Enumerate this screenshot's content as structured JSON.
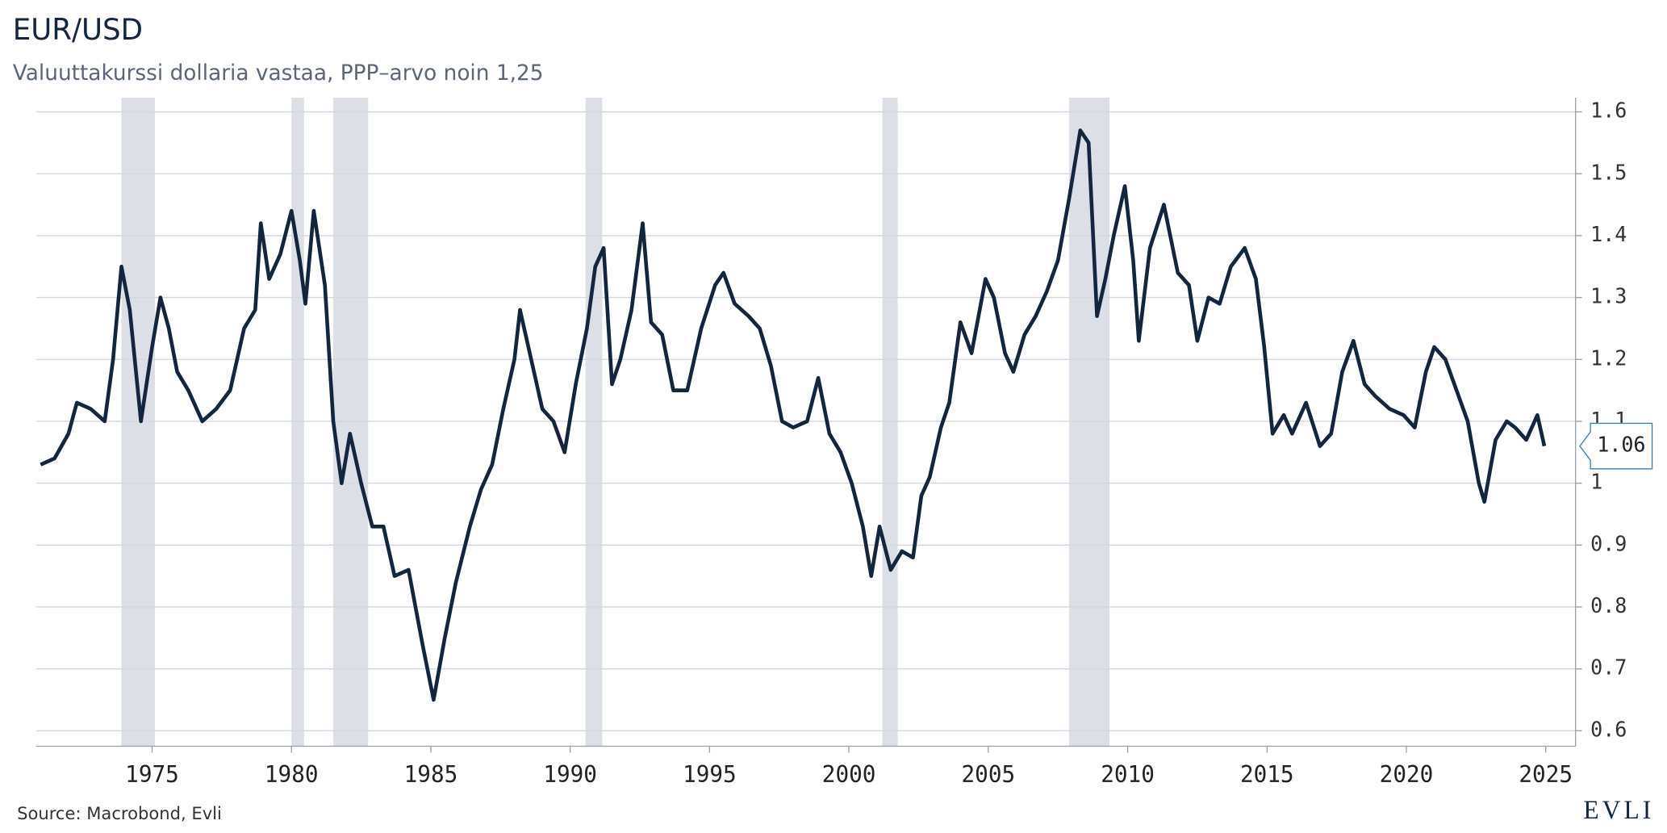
{
  "chart_data": {
    "type": "line",
    "title": "EUR/USD",
    "subtitle": "Valuuttakurssi dollaria vastaa, PPP–arvo noin 1,25",
    "source": "Source: Macrobond, Evli",
    "logo": "EVLI",
    "color": "#14263d",
    "shade_color": "#dcdfe6",
    "shaded_ranges": [
      [
        1973.9,
        1975.1
      ],
      [
        1980.0,
        1980.45
      ],
      [
        1981.5,
        1982.75
      ],
      [
        1990.55,
        1991.15
      ],
      [
        2001.2,
        2001.75
      ],
      [
        2007.9,
        2009.35
      ]
    ],
    "x": [
      1971.0,
      1971.5,
      1972.0,
      1972.3,
      1972.8,
      1973.3,
      1973.6,
      1973.9,
      1974.2,
      1974.6,
      1975.0,
      1975.3,
      1975.6,
      1975.9,
      1976.3,
      1976.8,
      1977.3,
      1977.8,
      1978.3,
      1978.7,
      1978.9,
      1979.2,
      1979.6,
      1980.0,
      1980.3,
      1980.5,
      1980.8,
      1981.2,
      1981.5,
      1981.8,
      1982.1,
      1982.5,
      1982.9,
      1983.3,
      1983.7,
      1984.2,
      1984.7,
      1985.1,
      1985.5,
      1985.9,
      1986.4,
      1986.8,
      1987.2,
      1987.6,
      1988.0,
      1988.2,
      1988.6,
      1989.0,
      1989.4,
      1989.8,
      1990.2,
      1990.6,
      1990.9,
      1991.2,
      1991.5,
      1991.8,
      1992.2,
      1992.6,
      1992.9,
      1993.3,
      1993.7,
      1994.2,
      1994.7,
      1995.2,
      1995.5,
      1995.9,
      1996.4,
      1996.8,
      1997.2,
      1997.6,
      1998.0,
      1998.5,
      1998.9,
      1999.3,
      1999.7,
      2000.1,
      2000.5,
      2000.8,
      2001.1,
      2001.5,
      2001.9,
      2002.3,
      2002.6,
      2002.9,
      2003.3,
      2003.6,
      2004.0,
      2004.4,
      2004.9,
      2005.2,
      2005.6,
      2005.9,
      2006.3,
      2006.7,
      2007.1,
      2007.5,
      2007.9,
      2008.3,
      2008.6,
      2008.9,
      2009.2,
      2009.5,
      2009.9,
      2010.2,
      2010.4,
      2010.8,
      2011.3,
      2011.8,
      2012.2,
      2012.5,
      2012.9,
      2013.3,
      2013.7,
      2014.2,
      2014.6,
      2014.9,
      2015.2,
      2015.6,
      2015.9,
      2016.4,
      2016.9,
      2017.3,
      2017.7,
      2018.1,
      2018.5,
      2018.9,
      2019.4,
      2019.9,
      2020.3,
      2020.7,
      2021.0,
      2021.4,
      2021.8,
      2022.2,
      2022.6,
      2022.8,
      2023.2,
      2023.6,
      2023.9,
      2024.3,
      2024.7,
      2024.95
    ],
    "values": [
      1.03,
      1.04,
      1.08,
      1.13,
      1.12,
      1.1,
      1.2,
      1.35,
      1.28,
      1.1,
      1.22,
      1.3,
      1.25,
      1.18,
      1.15,
      1.1,
      1.12,
      1.15,
      1.25,
      1.28,
      1.42,
      1.33,
      1.37,
      1.44,
      1.36,
      1.29,
      1.44,
      1.32,
      1.1,
      1.0,
      1.08,
      1.0,
      0.93,
      0.93,
      0.85,
      0.86,
      0.74,
      0.65,
      0.75,
      0.84,
      0.93,
      0.99,
      1.03,
      1.12,
      1.2,
      1.28,
      1.2,
      1.12,
      1.1,
      1.05,
      1.16,
      1.25,
      1.35,
      1.38,
      1.16,
      1.2,
      1.28,
      1.42,
      1.26,
      1.24,
      1.15,
      1.15,
      1.25,
      1.32,
      1.34,
      1.29,
      1.27,
      1.25,
      1.19,
      1.1,
      1.09,
      1.1,
      1.17,
      1.08,
      1.05,
      1.0,
      0.93,
      0.85,
      0.93,
      0.86,
      0.89,
      0.88,
      0.98,
      1.01,
      1.09,
      1.13,
      1.26,
      1.21,
      1.33,
      1.3,
      1.21,
      1.18,
      1.24,
      1.27,
      1.31,
      1.36,
      1.46,
      1.57,
      1.55,
      1.27,
      1.33,
      1.4,
      1.48,
      1.36,
      1.23,
      1.38,
      1.45,
      1.34,
      1.32,
      1.23,
      1.3,
      1.29,
      1.35,
      1.38,
      1.33,
      1.22,
      1.08,
      1.11,
      1.08,
      1.13,
      1.06,
      1.08,
      1.18,
      1.23,
      1.16,
      1.14,
      1.12,
      1.11,
      1.09,
      1.18,
      1.22,
      1.2,
      1.15,
      1.1,
      1.0,
      0.97,
      1.07,
      1.1,
      1.09,
      1.07,
      1.11,
      1.06
    ],
    "xlim": [
      1970.84,
      2026.07
    ],
    "xticks": [
      1975,
      1980,
      1985,
      1990,
      1995,
      2000,
      2005,
      2010,
      2015,
      2020,
      2025
    ],
    "ylim": [
      0.575,
      1.623
    ],
    "yticks": [
      0.6,
      0.7,
      0.8,
      0.9,
      1.0,
      1.1,
      1.2,
      1.3,
      1.4,
      1.5,
      1.6
    ],
    "grid": true,
    "y_axis_side": "right"
  }
}
